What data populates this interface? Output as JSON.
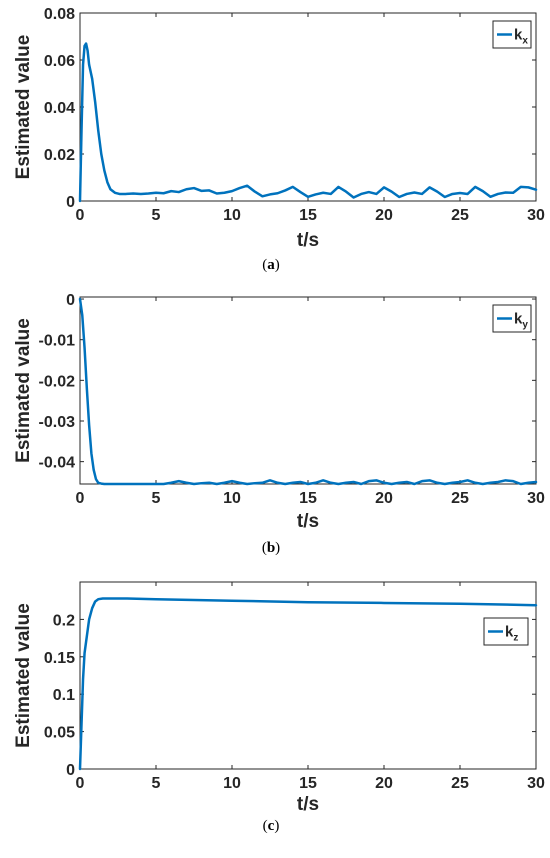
{
  "chart_data": [
    {
      "type": "line",
      "caption": "a",
      "xlabel": "t/s",
      "ylabel": "Estimated value",
      "xlim": [
        0,
        30
      ],
      "ylim": [
        0,
        0.08
      ],
      "xticks": [
        "0",
        "5",
        "10",
        "15",
        "20",
        "25",
        "30"
      ],
      "yticks": [
        "0",
        "0.02",
        "0.04",
        "0.06",
        "0.08"
      ],
      "legend": {
        "base": "k",
        "sub": "x",
        "position": "top-right"
      },
      "color": "#0072BD",
      "series": [
        {
          "x": [
            0,
            0.1,
            0.2,
            0.3,
            0.4,
            0.5,
            0.6,
            0.8,
            1.0,
            1.2,
            1.4,
            1.6,
            1.8,
            2.0,
            2.3,
            2.6,
            3.0,
            3.5,
            4.0,
            4.5,
            5.0,
            5.5,
            6.0,
            6.5,
            7.0,
            7.5,
            8.0,
            8.5,
            9.0,
            9.5,
            10.0,
            10.5,
            11.0,
            11.5,
            12.0,
            12.5,
            13.0,
            13.5,
            14.0,
            14.5,
            15.0,
            15.5,
            16.0,
            16.5,
            17.0,
            17.5,
            18.0,
            18.5,
            19.0,
            19.5,
            20.0,
            20.5,
            21.0,
            21.5,
            22.0,
            22.5,
            23.0,
            23.5,
            24.0,
            24.5,
            25.0,
            25.5,
            26.0,
            26.5,
            27.0,
            27.5,
            28.0,
            28.5,
            29.0,
            29.5,
            30.0
          ],
          "y": [
            0,
            0.03,
            0.058,
            0.066,
            0.067,
            0.064,
            0.058,
            0.052,
            0.042,
            0.03,
            0.02,
            0.013,
            0.008,
            0.005,
            0.0035,
            0.003,
            0.003,
            0.0032,
            0.003,
            0.0032,
            0.0035,
            0.0033,
            0.0042,
            0.0038,
            0.005,
            0.0055,
            0.0043,
            0.0045,
            0.0032,
            0.0035,
            0.0042,
            0.0055,
            0.0065,
            0.004,
            0.002,
            0.0028,
            0.0033,
            0.0045,
            0.006,
            0.0038,
            0.0018,
            0.0028,
            0.0035,
            0.003,
            0.006,
            0.004,
            0.0015,
            0.003,
            0.0038,
            0.003,
            0.0058,
            0.004,
            0.0017,
            0.003,
            0.0036,
            0.003,
            0.0058,
            0.004,
            0.0017,
            0.003,
            0.0034,
            0.003,
            0.006,
            0.0042,
            0.0018,
            0.003,
            0.0036,
            0.0035,
            0.006,
            0.0058,
            0.0048
          ]
        }
      ]
    },
    {
      "type": "line",
      "caption": "b",
      "xlabel": "t/s",
      "ylabel": "Estimated value",
      "xlim": [
        0,
        30
      ],
      "ylim": [
        -0.0455,
        0.0005
      ],
      "xticks": [
        "0",
        "5",
        "10",
        "15",
        "20",
        "25",
        "30"
      ],
      "yticks": [
        "0",
        "-0.01",
        "-0.02",
        "-0.03",
        "-0.04"
      ],
      "legend": {
        "base": "k",
        "sub": "y",
        "position": "top-right"
      },
      "color": "#0072BD",
      "series": [
        {
          "x": [
            0,
            0.15,
            0.3,
            0.45,
            0.6,
            0.75,
            0.9,
            1.05,
            1.2,
            1.4,
            1.6,
            2.0,
            2.5,
            3.0,
            3.5,
            4.0,
            4.5,
            5.0,
            5.5,
            6.0,
            6.5,
            7.0,
            7.5,
            8.0,
            8.5,
            9.0,
            9.5,
            10.0,
            10.5,
            11.0,
            11.5,
            12.0,
            12.5,
            13.0,
            13.5,
            14.0,
            14.5,
            15.0,
            15.5,
            16.0,
            16.5,
            17.0,
            17.5,
            18.0,
            18.5,
            19.0,
            19.5,
            20.0,
            20.5,
            21.0,
            21.5,
            22.0,
            22.5,
            23.0,
            23.5,
            24.0,
            24.5,
            25.0,
            25.5,
            26.0,
            26.5,
            27.0,
            27.5,
            28.0,
            28.5,
            29.0,
            29.5,
            30.0
          ],
          "y": [
            0,
            -0.004,
            -0.012,
            -0.022,
            -0.031,
            -0.038,
            -0.042,
            -0.0443,
            -0.0452,
            -0.0454,
            -0.0455,
            -0.0455,
            -0.0455,
            -0.0455,
            -0.0455,
            -0.0455,
            -0.0455,
            -0.0455,
            -0.0455,
            -0.0452,
            -0.0448,
            -0.0452,
            -0.0455,
            -0.0453,
            -0.0452,
            -0.0455,
            -0.0452,
            -0.0448,
            -0.0452,
            -0.0455,
            -0.0453,
            -0.0452,
            -0.0446,
            -0.0452,
            -0.0455,
            -0.0452,
            -0.045,
            -0.0455,
            -0.0452,
            -0.0446,
            -0.0452,
            -0.0455,
            -0.0452,
            -0.045,
            -0.0455,
            -0.0448,
            -0.0446,
            -0.0452,
            -0.0455,
            -0.0452,
            -0.045,
            -0.0455,
            -0.0448,
            -0.0446,
            -0.0452,
            -0.0455,
            -0.0452,
            -0.045,
            -0.0446,
            -0.0452,
            -0.0455,
            -0.0452,
            -0.045,
            -0.0446,
            -0.0448,
            -0.0455,
            -0.0452,
            -0.045
          ]
        }
      ]
    },
    {
      "type": "line",
      "caption": "c",
      "xlabel": "t/s",
      "ylabel": "Estimated value",
      "xlim": [
        0,
        30
      ],
      "ylim": [
        0,
        0.25
      ],
      "xticks": [
        "0",
        "5",
        "10",
        "15",
        "20",
        "25",
        "30"
      ],
      "yticks": [
        "0",
        "0.05",
        "0.1",
        "0.15",
        "0.2"
      ],
      "legend": {
        "base": "k",
        "sub": "z",
        "position": "right"
      },
      "color": "#0072BD",
      "series": [
        {
          "x": [
            0,
            0.1,
            0.2,
            0.3,
            0.4,
            0.5,
            0.6,
            0.8,
            1.0,
            1.2,
            1.5,
            2.0,
            3.0,
            5.0,
            10.0,
            15.0,
            20.0,
            25.0,
            30.0
          ],
          "y": [
            0,
            0.06,
            0.12,
            0.155,
            0.17,
            0.185,
            0.2,
            0.215,
            0.224,
            0.227,
            0.228,
            0.228,
            0.228,
            0.227,
            0.225,
            0.223,
            0.222,
            0.221,
            0.219
          ]
        }
      ]
    }
  ]
}
